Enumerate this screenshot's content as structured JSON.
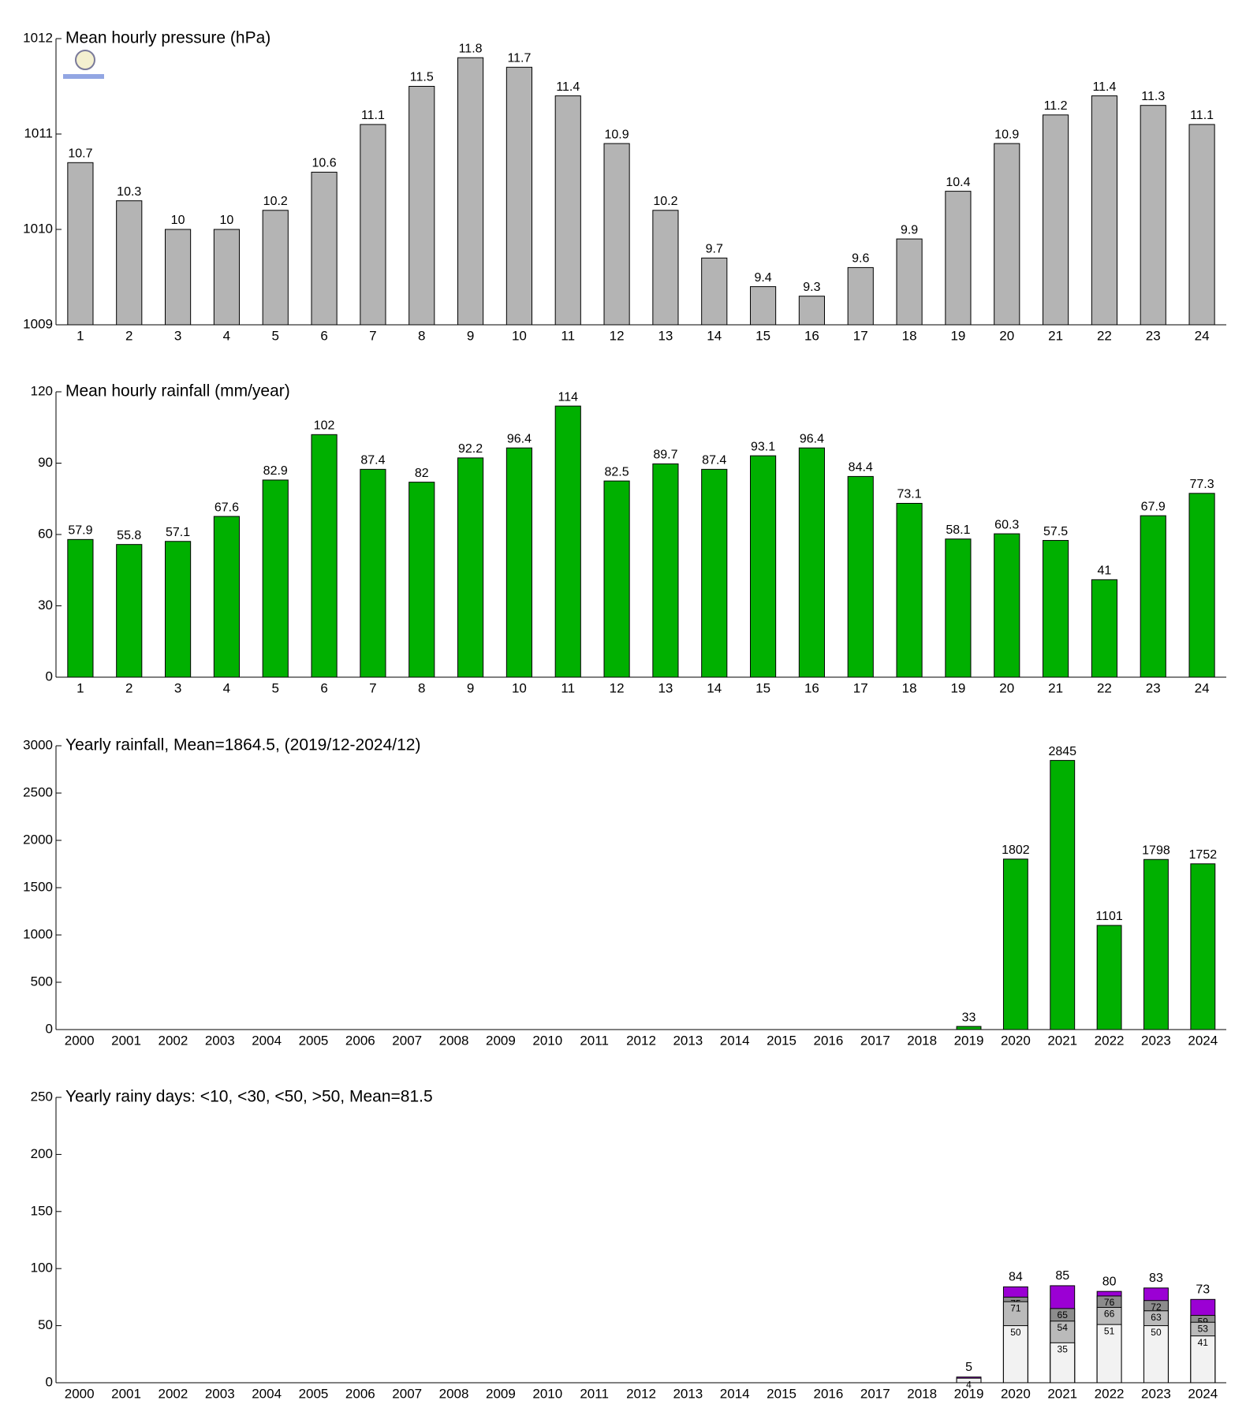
{
  "chart_data": [
    {
      "type": "bar",
      "title": "Mean hourly pressure (hPa)",
      "categories": [
        "1",
        "2",
        "3",
        "4",
        "5",
        "6",
        "7",
        "8",
        "9",
        "10",
        "11",
        "12",
        "13",
        "14",
        "15",
        "16",
        "17",
        "18",
        "19",
        "20",
        "21",
        "22",
        "23",
        "24"
      ],
      "values": [
        1010.7,
        1010.3,
        1010,
        1010,
        1010.2,
        1010.6,
        1011.1,
        1011.5,
        1011.8,
        1011.7,
        1011.4,
        1010.9,
        1010.2,
        1009.7,
        1009.4,
        1009.3,
        1009.6,
        1009.9,
        1010.4,
        1010.9,
        1011.2,
        1011.4,
        1011.3,
        1011.1
      ],
      "value_labels": [
        "10.7",
        "10.3",
        "10",
        "10",
        "10.2",
        "10.6",
        "11.1",
        "11.5",
        "11.8",
        "11.7",
        "11.4",
        "10.9",
        "10.2",
        "9.7",
        "9.4",
        "9.3",
        "9.6",
        "9.9",
        "10.4",
        "10.9",
        "11.2",
        "11.4",
        "11.3",
        "11.1"
      ],
      "color": "#b4b4b4",
      "ylim": [
        1009,
        1012
      ],
      "yticks": [
        1009,
        1010,
        1011,
        1012
      ]
    },
    {
      "type": "bar",
      "title": "Mean hourly rainfall (mm/year)",
      "categories": [
        "1",
        "2",
        "3",
        "4",
        "5",
        "6",
        "7",
        "8",
        "9",
        "10",
        "11",
        "12",
        "13",
        "14",
        "15",
        "16",
        "17",
        "18",
        "19",
        "20",
        "21",
        "22",
        "23",
        "24"
      ],
      "values": [
        57.9,
        55.8,
        57.1,
        67.6,
        82.9,
        102,
        87.4,
        82,
        92.2,
        96.4,
        114,
        82.5,
        89.7,
        87.4,
        93.1,
        96.4,
        84.4,
        73.1,
        58.1,
        60.3,
        57.5,
        41,
        67.9,
        77.3
      ],
      "color": "#00b000",
      "ylim": [
        0,
        120
      ],
      "yticks": [
        0,
        30,
        60,
        90,
        120
      ]
    },
    {
      "type": "bar",
      "title": "Yearly rainfall, Mean=1864.5, (2019/12-2024/12)",
      "categories": [
        "2000",
        "2001",
        "2002",
        "2003",
        "2004",
        "2005",
        "2006",
        "2007",
        "2008",
        "2009",
        "2010",
        "2011",
        "2012",
        "2013",
        "2014",
        "2015",
        "2016",
        "2017",
        "2018",
        "2019",
        "2020",
        "2021",
        "2022",
        "2023",
        "2024"
      ],
      "values": [
        null,
        null,
        null,
        null,
        null,
        null,
        null,
        null,
        null,
        null,
        null,
        null,
        null,
        null,
        null,
        null,
        null,
        null,
        null,
        33,
        1802,
        2845,
        1101,
        1798,
        1752
      ],
      "color": "#00b000",
      "ylim": [
        0,
        3000
      ],
      "yticks": [
        0,
        500,
        1000,
        1500,
        2000,
        2500,
        3000
      ]
    },
    {
      "type": "overlay",
      "title": "Yearly rainy days: <10, <30, <50, >50, Mean=81.5",
      "categories": [
        "2000",
        "2001",
        "2002",
        "2003",
        "2004",
        "2005",
        "2006",
        "2007",
        "2008",
        "2009",
        "2010",
        "2011",
        "2012",
        "2013",
        "2014",
        "2015",
        "2016",
        "2017",
        "2018",
        "2019",
        "2020",
        "2021",
        "2022",
        "2023",
        "2024"
      ],
      "series": [
        {
          "color": "#9b00d4",
          "values": [
            null,
            null,
            null,
            null,
            null,
            null,
            null,
            null,
            null,
            null,
            null,
            null,
            null,
            null,
            null,
            null,
            null,
            null,
            null,
            5,
            84,
            85,
            80,
            83,
            73
          ]
        },
        {
          "color": "#8c8c8c",
          "values": [
            null,
            null,
            null,
            null,
            null,
            null,
            null,
            null,
            null,
            null,
            null,
            null,
            null,
            null,
            null,
            null,
            null,
            null,
            null,
            null,
            75,
            65,
            76,
            72,
            59
          ]
        },
        {
          "color": "#bababa",
          "values": [
            null,
            null,
            null,
            null,
            null,
            null,
            null,
            null,
            null,
            null,
            null,
            null,
            null,
            null,
            null,
            null,
            null,
            null,
            null,
            null,
            71,
            54,
            66,
            63,
            53
          ]
        },
        {
          "color": "#f2f2f2",
          "values": [
            null,
            null,
            null,
            null,
            null,
            null,
            null,
            null,
            null,
            null,
            null,
            null,
            null,
            null,
            null,
            null,
            null,
            null,
            null,
            4,
            50,
            35,
            51,
            50,
            41
          ]
        }
      ],
      "ylim": [
        0,
        250
      ],
      "yticks": [
        0,
        50,
        100,
        150,
        200,
        250
      ]
    }
  ]
}
